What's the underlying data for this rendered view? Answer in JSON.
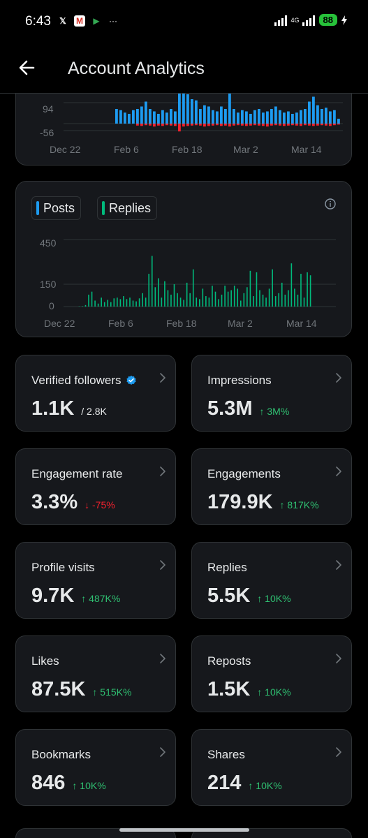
{
  "status_bar": {
    "time": "6:43",
    "network": "4G",
    "battery": "88",
    "more": "···"
  },
  "header": {
    "title": "Account Analytics"
  },
  "chart1": {
    "y_ticks": [
      "94",
      "-56"
    ],
    "x_ticks": [
      "Dec 22",
      "Feb 6",
      "Feb 18",
      "Mar 2",
      "Mar 14"
    ],
    "colors": {
      "positive": "#1d9bf0",
      "negative": "#f4212e"
    }
  },
  "chart2": {
    "legend": [
      {
        "label": "Posts",
        "color": "#1d9bf0"
      },
      {
        "label": "Replies",
        "color": "#00ba7c"
      }
    ],
    "y_ticks": [
      "450",
      "150",
      "0"
    ],
    "x_ticks": [
      "Dec 22",
      "Feb 6",
      "Feb 18",
      "Mar 2",
      "Mar 14"
    ]
  },
  "chart_data": [
    {
      "type": "bar",
      "y_ticks": [
        94,
        -56
      ],
      "x_ticks": [
        "Dec 22",
        "Feb 6",
        "Feb 18",
        "Mar 2",
        "Mar 14"
      ],
      "series": [
        {
          "values": [
            60,
            55,
            45,
            40,
            55,
            60,
            70,
            90,
            60,
            50,
            40,
            55,
            45,
            60,
            50,
            130,
            160,
            120,
            100,
            95,
            60,
            75,
            70,
            55,
            50,
            70,
            60,
            140,
            60,
            45,
            55,
            50,
            40,
            55,
            60,
            45,
            50,
            60,
            70,
            55,
            45,
            50,
            40,
            45,
            55,
            60,
            90,
            110,
            75,
            60,
            65,
            50,
            55,
            20
          ]
        },
        {
          "values": [
            0,
            0,
            0,
            0,
            0,
            -10,
            -12,
            -8,
            -10,
            -15,
            -10,
            -12,
            -8,
            -10,
            -12,
            -40,
            -15,
            -12,
            -10,
            -8,
            -10,
            -15,
            -12,
            -10,
            -8,
            -12,
            -10,
            -15,
            -10,
            -8,
            -10,
            -12,
            -10,
            -8,
            -10,
            -12,
            -15,
            -10,
            -8,
            -10,
            -12,
            -10,
            -8,
            -10,
            -12,
            -8,
            -10,
            -12,
            -10,
            -8,
            -10,
            -12,
            -8,
            -5
          ]
        }
      ]
    },
    {
      "type": "bar",
      "y_ticks": [
        450,
        150,
        0
      ],
      "x_ticks": [
        "Dec 22",
        "Feb 6",
        "Feb 18",
        "Mar 2",
        "Mar 14"
      ],
      "series": [
        {
          "name": "Posts",
          "values": [
            0,
            0,
            0,
            0,
            0,
            0,
            0,
            0,
            0,
            0,
            0,
            0,
            0,
            0,
            0,
            0,
            0,
            0,
            0,
            0,
            0,
            0,
            0,
            0,
            0,
            0,
            0,
            0,
            0,
            0,
            0,
            0,
            0,
            0,
            0,
            0,
            0,
            0,
            0,
            0,
            0,
            0,
            0,
            0,
            0,
            0,
            0,
            0,
            0,
            0,
            0,
            0,
            0,
            0,
            0,
            0,
            0,
            0,
            0,
            0,
            0,
            0,
            0,
            0,
            0,
            0,
            0,
            0,
            0,
            0,
            0,
            0,
            0,
            0,
            0,
            0,
            0,
            0,
            0,
            0,
            0,
            0
          ]
        },
        {
          "name": "Replies",
          "values": [
            0,
            0,
            0,
            2,
            3,
            10,
            80,
            100,
            40,
            20,
            60,
            30,
            45,
            30,
            55,
            60,
            50,
            70,
            50,
            60,
            40,
            35,
            55,
            90,
            60,
            220,
            340,
            130,
            190,
            60,
            170,
            110,
            80,
            150,
            90,
            60,
            45,
            160,
            90,
            250,
            60,
            50,
            120,
            70,
            60,
            140,
            100,
            50,
            80,
            140,
            100,
            110,
            140,
            120,
            40,
            90,
            130,
            240,
            70,
            230,
            110,
            80,
            60,
            120,
            250,
            70,
            90,
            160,
            80,
            110,
            290,
            120,
            80,
            220,
            60,
            230,
            210,
            0,
            0,
            0,
            0,
            0
          ]
        }
      ]
    }
  ],
  "metrics": [
    {
      "label": "Verified followers",
      "value": "1.1K",
      "sub": "/ 2.8K",
      "trend": "plain",
      "verified": true
    },
    {
      "label": "Impressions",
      "value": "5.3M",
      "sub": "↑ 3M%",
      "trend": "up"
    },
    {
      "label": "Engagement rate",
      "value": "3.3%",
      "sub": "↓ -75%",
      "trend": "down"
    },
    {
      "label": "Engagements",
      "value": "179.9K",
      "sub": "↑ 817K%",
      "trend": "up"
    },
    {
      "label": "Profile visits",
      "value": "9.7K",
      "sub": "↑ 487K%",
      "trend": "up"
    },
    {
      "label": "Replies",
      "value": "5.5K",
      "sub": "↑ 10K%",
      "trend": "up"
    },
    {
      "label": "Likes",
      "value": "87.5K",
      "sub": "↑ 515K%",
      "trend": "up"
    },
    {
      "label": "Reposts",
      "value": "1.5K",
      "sub": "↑ 10K%",
      "trend": "up"
    },
    {
      "label": "Bookmarks",
      "value": "846",
      "sub": "↑ 10K%",
      "trend": "up"
    },
    {
      "label": "Shares",
      "value": "214",
      "sub": "↑ 10K%",
      "trend": "up"
    }
  ]
}
